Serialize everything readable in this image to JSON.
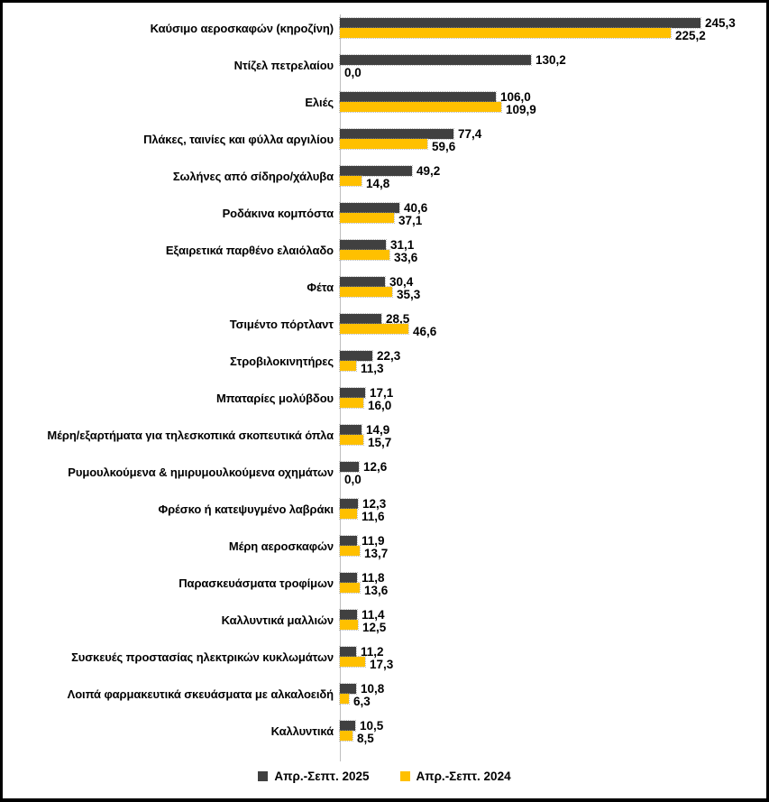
{
  "chart_data": {
    "type": "bar",
    "orientation": "horizontal",
    "title": "",
    "xlabel": "",
    "ylabel": "",
    "grid": false,
    "legend_position": "bottom",
    "decimal_separator": ",",
    "axis_line_color": "#bfbfbf",
    "xlim": [
      0,
      290
    ],
    "categories": [
      "Καύσιμο αεροσκαφών (κηροζίνη)",
      "Ντίζελ πετρελαίου",
      "Ελιές",
      "Πλάκες, ταινίες και φύλλα αργιλίου",
      "Σωλήνες από σίδηρο/χάλυβα",
      "Ροδάκινα κομπόστα",
      "Εξαιρετικά παρθένο ελαιόλαδο",
      "Φέτα",
      "Τσιμέντο πόρτλαντ",
      "Στροβιλοκινητήρες",
      "Μπαταρίες μολύβδου",
      "Μέρη/εξαρτήματα για τηλεσκοπικά σκοπευτικά όπλα",
      "Ρυμουλκούμενα & ημιρυμουλκούμενα οχημάτων",
      "Φρέσκο ή κατεψυγμένο λαβράκι",
      "Μέρη αεροσκαφών",
      "Παρασκευάσματα τροφίμων",
      "Καλλυντικά μαλλιών",
      "Συσκευές προστασίας ηλεκτρικών κυκλωμάτων",
      "Λοιπά φαρμακευτικά σκευάσματα με αλκαλοειδή",
      "Καλλυντικά"
    ],
    "series": [
      {
        "key": "2025",
        "name": "Απρ.-Σεπτ. 2025",
        "color": "#404040",
        "values": [
          245.3,
          130.2,
          106.0,
          77.4,
          49.2,
          40.6,
          31.1,
          30.4,
          28.5,
          22.3,
          17.1,
          14.9,
          12.6,
          12.3,
          11.9,
          11.8,
          11.4,
          11.2,
          10.8,
          10.5
        ]
      },
      {
        "key": "2024",
        "name": "Απρ.-Σεπτ. 2024",
        "color": "#FFC000",
        "values": [
          225.2,
          0.0,
          109.9,
          59.6,
          14.8,
          37.1,
          33.6,
          35.3,
          46.6,
          11.3,
          16.0,
          15.7,
          0.0,
          11.6,
          13.7,
          13.6,
          12.5,
          17.3,
          6.3,
          8.5
        ]
      }
    ]
  }
}
